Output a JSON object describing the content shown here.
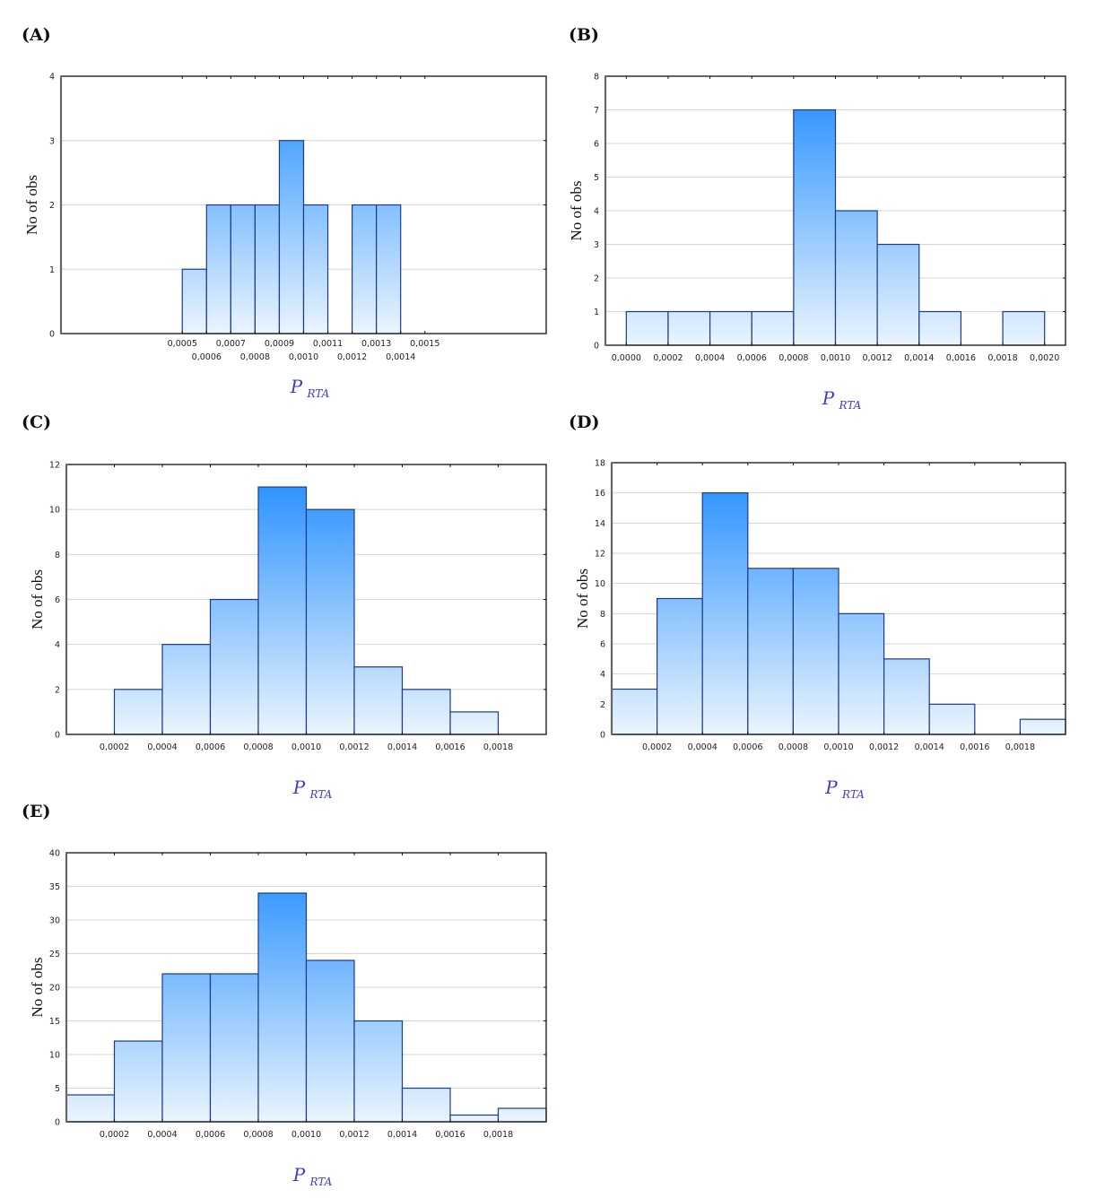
{
  "chart_data": [
    {
      "id": "A",
      "panel_label": "(A)",
      "type": "bar",
      "title": "",
      "xlabel": "P",
      "xlabel_sub": "RTA",
      "ylabel": "No of obs",
      "xlim": [
        0.0,
        0.002
      ],
      "ylim": [
        0,
        4
      ],
      "yticks": [
        0,
        1,
        2,
        3,
        4
      ],
      "xtick_values": [
        0.0005,
        0.0006,
        0.0007,
        0.0008,
        0.0009,
        0.001,
        0.0011,
        0.0012,
        0.0013,
        0.0014,
        0.0015
      ],
      "xtick_labels": [
        "0,0005",
        "0,0006",
        "0,0007",
        "0,0008",
        "0,0009",
        "0,0010",
        "0,0011",
        "0,0012",
        "0,0013",
        "0,0014",
        "0,0015"
      ],
      "xtick_staggered": true,
      "grid": true,
      "bins": [
        {
          "from": 0.0005,
          "to": 0.0006,
          "count": 1
        },
        {
          "from": 0.0006,
          "to": 0.0007,
          "count": 2
        },
        {
          "from": 0.0007,
          "to": 0.0008,
          "count": 2
        },
        {
          "from": 0.0008,
          "to": 0.0009,
          "count": 2
        },
        {
          "from": 0.0009,
          "to": 0.001,
          "count": 3
        },
        {
          "from": 0.001,
          "to": 0.0011,
          "count": 2
        },
        {
          "from": 0.0011,
          "to": 0.0012,
          "count": 0
        },
        {
          "from": 0.0012,
          "to": 0.0013,
          "count": 2
        },
        {
          "from": 0.0013,
          "to": 0.0014,
          "count": 2
        }
      ]
    },
    {
      "id": "B",
      "panel_label": "(B)",
      "type": "bar",
      "title": "",
      "xlabel": "P",
      "xlabel_sub": "RTA",
      "ylabel": "No of obs",
      "xlim": [
        -0.0001,
        0.0021
      ],
      "ylim": [
        0,
        8
      ],
      "yticks": [
        0,
        1,
        2,
        3,
        4,
        5,
        6,
        7,
        8
      ],
      "xtick_values": [
        0.0,
        0.0002,
        0.0004,
        0.0006,
        0.0008,
        0.001,
        0.0012,
        0.0014,
        0.0016,
        0.0018,
        0.002
      ],
      "xtick_labels": [
        "0,0000",
        "0,0002",
        "0,0004",
        "0,0006",
        "0,0008",
        "0,0010",
        "0,0012",
        "0,0014",
        "0,0016",
        "0,0018",
        "0,0020"
      ],
      "xtick_staggered": false,
      "grid": true,
      "bins": [
        {
          "from": 0.0,
          "to": 0.0002,
          "count": 1
        },
        {
          "from": 0.0002,
          "to": 0.0004,
          "count": 1
        },
        {
          "from": 0.0004,
          "to": 0.0006,
          "count": 1
        },
        {
          "from": 0.0006,
          "to": 0.0008,
          "count": 1
        },
        {
          "from": 0.0008,
          "to": 0.001,
          "count": 7
        },
        {
          "from": 0.001,
          "to": 0.0012,
          "count": 4
        },
        {
          "from": 0.0012,
          "to": 0.0014,
          "count": 3
        },
        {
          "from": 0.0014,
          "to": 0.0016,
          "count": 1
        },
        {
          "from": 0.0016,
          "to": 0.0018,
          "count": 0
        },
        {
          "from": 0.0018,
          "to": 0.002,
          "count": 1
        }
      ]
    },
    {
      "id": "C",
      "panel_label": "(C)",
      "type": "bar",
      "title": "",
      "xlabel": "P",
      "xlabel_sub": "RTA",
      "ylabel": "No of obs",
      "xlim": [
        0.0,
        0.002
      ],
      "ylim": [
        0,
        12
      ],
      "yticks": [
        0,
        2,
        4,
        6,
        8,
        10,
        12
      ],
      "xtick_values": [
        0.0002,
        0.0004,
        0.0006,
        0.0008,
        0.001,
        0.0012,
        0.0014,
        0.0016,
        0.0018
      ],
      "xtick_labels": [
        "0,0002",
        "0,0004",
        "0,0006",
        "0,0008",
        "0,0010",
        "0,0012",
        "0,0014",
        "0,0016",
        "0,0018"
      ],
      "xtick_staggered": false,
      "grid": true,
      "bins": [
        {
          "from": 0.0002,
          "to": 0.0004,
          "count": 2
        },
        {
          "from": 0.0004,
          "to": 0.0006,
          "count": 4
        },
        {
          "from": 0.0006,
          "to": 0.0008,
          "count": 6
        },
        {
          "from": 0.0008,
          "to": 0.001,
          "count": 11
        },
        {
          "from": 0.001,
          "to": 0.0012,
          "count": 10
        },
        {
          "from": 0.0012,
          "to": 0.0014,
          "count": 3
        },
        {
          "from": 0.0014,
          "to": 0.0016,
          "count": 2
        },
        {
          "from": 0.0016,
          "to": 0.0018,
          "count": 1
        }
      ]
    },
    {
      "id": "D",
      "panel_label": "(D)",
      "type": "bar",
      "title": "",
      "xlabel": "P",
      "xlabel_sub": "RTA",
      "ylabel": "No of obs",
      "xlim": [
        0.0,
        0.002
      ],
      "ylim": [
        0,
        18
      ],
      "yticks": [
        0,
        2,
        4,
        6,
        8,
        10,
        12,
        14,
        16,
        18
      ],
      "xtick_values": [
        0.0002,
        0.0004,
        0.0006,
        0.0008,
        0.001,
        0.0012,
        0.0014,
        0.0016,
        0.0018
      ],
      "xtick_labels": [
        "0,0002",
        "0,0004",
        "0,0006",
        "0,0008",
        "0,0010",
        "0,0012",
        "0,0014",
        "0,0016",
        "0,0018"
      ],
      "xtick_staggered": false,
      "grid": true,
      "bins": [
        {
          "from": 0.0,
          "to": 0.0002,
          "count": 3
        },
        {
          "from": 0.0002,
          "to": 0.0004,
          "count": 9
        },
        {
          "from": 0.0004,
          "to": 0.0006,
          "count": 16
        },
        {
          "from": 0.0006,
          "to": 0.0008,
          "count": 11
        },
        {
          "from": 0.0008,
          "to": 0.001,
          "count": 11
        },
        {
          "from": 0.001,
          "to": 0.0012,
          "count": 8
        },
        {
          "from": 0.0012,
          "to": 0.0014,
          "count": 5
        },
        {
          "from": 0.0014,
          "to": 0.0016,
          "count": 2
        },
        {
          "from": 0.0016,
          "to": 0.0018,
          "count": 0
        },
        {
          "from": 0.0018,
          "to": 0.002,
          "count": 1
        }
      ]
    },
    {
      "id": "E",
      "panel_label": "(E)",
      "type": "bar",
      "title": "",
      "xlabel": "P",
      "xlabel_sub": "RTA",
      "ylabel": "No of obs",
      "xlim": [
        0.0,
        0.002
      ],
      "ylim": [
        0,
        40
      ],
      "yticks": [
        0,
        5,
        10,
        15,
        20,
        25,
        30,
        35,
        40
      ],
      "xtick_values": [
        0.0002,
        0.0004,
        0.0006,
        0.0008,
        0.001,
        0.0012,
        0.0014,
        0.0016,
        0.0018
      ],
      "xtick_labels": [
        "0,0002",
        "0,0004",
        "0,0006",
        "0,0008",
        "0,0010",
        "0,0012",
        "0,0014",
        "0,0016",
        "0,0018"
      ],
      "xtick_staggered": false,
      "grid": true,
      "bins": [
        {
          "from": 0.0,
          "to": 0.0002,
          "count": 4
        },
        {
          "from": 0.0002,
          "to": 0.0004,
          "count": 12
        },
        {
          "from": 0.0004,
          "to": 0.0006,
          "count": 22
        },
        {
          "from": 0.0006,
          "to": 0.0008,
          "count": 22
        },
        {
          "from": 0.0008,
          "to": 0.001,
          "count": 34
        },
        {
          "from": 0.001,
          "to": 0.0012,
          "count": 24
        },
        {
          "from": 0.0012,
          "to": 0.0014,
          "count": 15
        },
        {
          "from": 0.0014,
          "to": 0.0016,
          "count": 5
        },
        {
          "from": 0.0016,
          "to": 0.0018,
          "count": 1
        },
        {
          "from": 0.0018,
          "to": 0.002,
          "count": 2
        }
      ]
    }
  ],
  "style": {
    "bar_top_color": "#1e8bff",
    "bar_bottom_color": "#eaf4fe",
    "bar_border_color": "#1b3a8c",
    "grid_color": "#d4d4d4",
    "frame_color": "#111111",
    "xlabel_color": "#3b3bd0"
  }
}
